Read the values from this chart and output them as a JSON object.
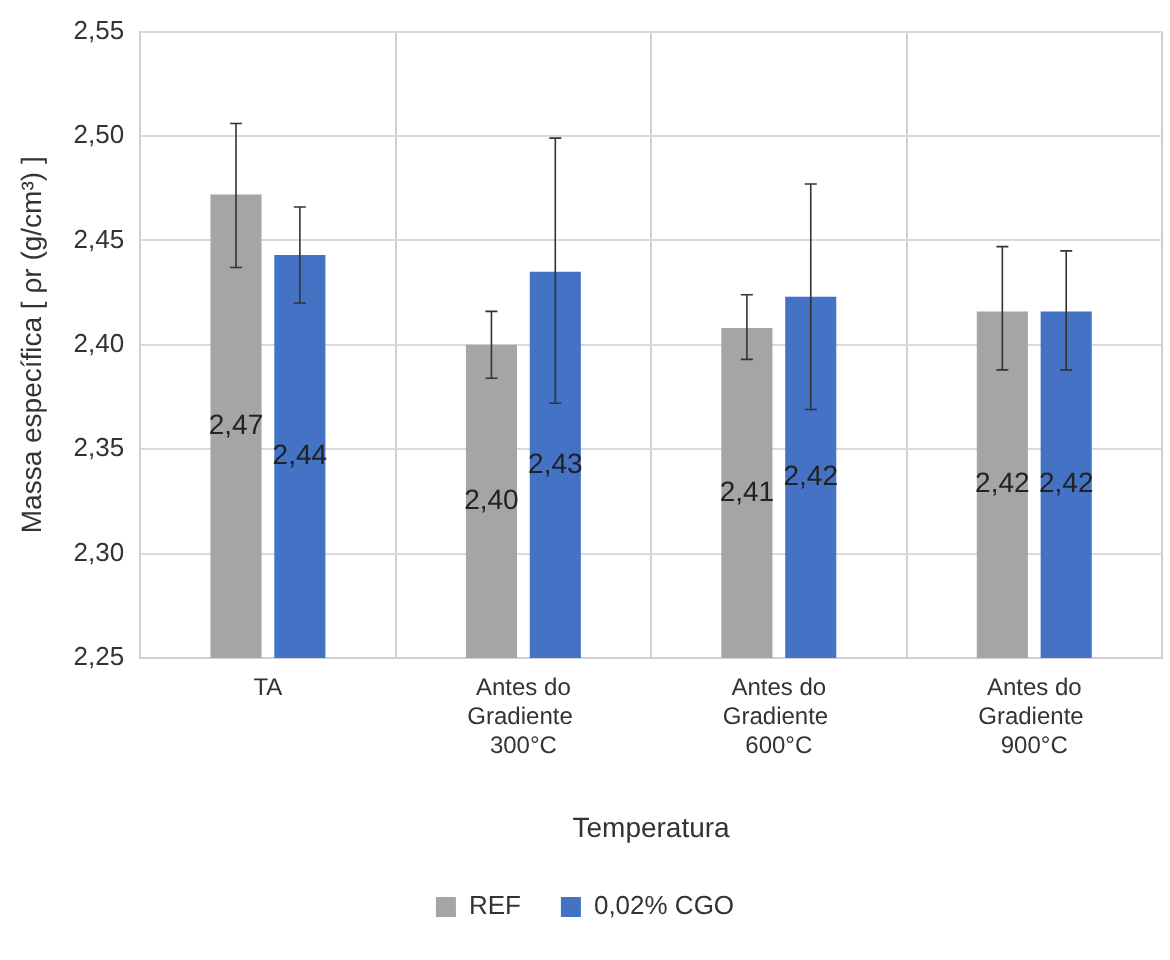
{
  "chart_data": {
    "type": "bar",
    "xlabel": "Temperatura",
    "ylabel": "Massa específica [ ρr (g/cm³) ]",
    "categories": [
      "TA",
      "Antes do Gradiente  300°C",
      "Antes do Gradiente  600°C",
      "Antes do Gradiente  900°C"
    ],
    "series": [
      {
        "name": "REF",
        "color": "#a5a5a5",
        "values": [
          2.472,
          2.4,
          2.408,
          2.416
        ],
        "value_labels": [
          "2,47",
          "2,40",
          "2,41",
          "2,42"
        ],
        "errors": [
          [
            2.437,
            2.506
          ],
          [
            2.384,
            2.416
          ],
          [
            2.393,
            2.424
          ],
          [
            2.388,
            2.447
          ]
        ]
      },
      {
        "name": "0,02% CGO",
        "color": "#4472c4",
        "values": [
          2.443,
          2.435,
          2.423,
          2.416
        ],
        "value_labels": [
          "2,44",
          "2,43",
          "2,42",
          "2,42"
        ],
        "errors": [
          [
            2.42,
            2.466
          ],
          [
            2.372,
            2.499
          ],
          [
            2.369,
            2.477
          ],
          [
            2.388,
            2.445
          ]
        ]
      }
    ],
    "ylim": [
      2.25,
      2.55
    ],
    "yticks": [
      {
        "value": 2.25,
        "label": "2,25"
      },
      {
        "value": 2.3,
        "label": "2,30"
      },
      {
        "value": 2.35,
        "label": "2,35"
      },
      {
        "value": 2.4,
        "label": "2,40"
      },
      {
        "value": 2.45,
        "label": "2,45"
      },
      {
        "value": 2.5,
        "label": "2,50"
      },
      {
        "value": 2.55,
        "label": "2,55"
      }
    ],
    "grid": true,
    "legend": "bottom"
  }
}
